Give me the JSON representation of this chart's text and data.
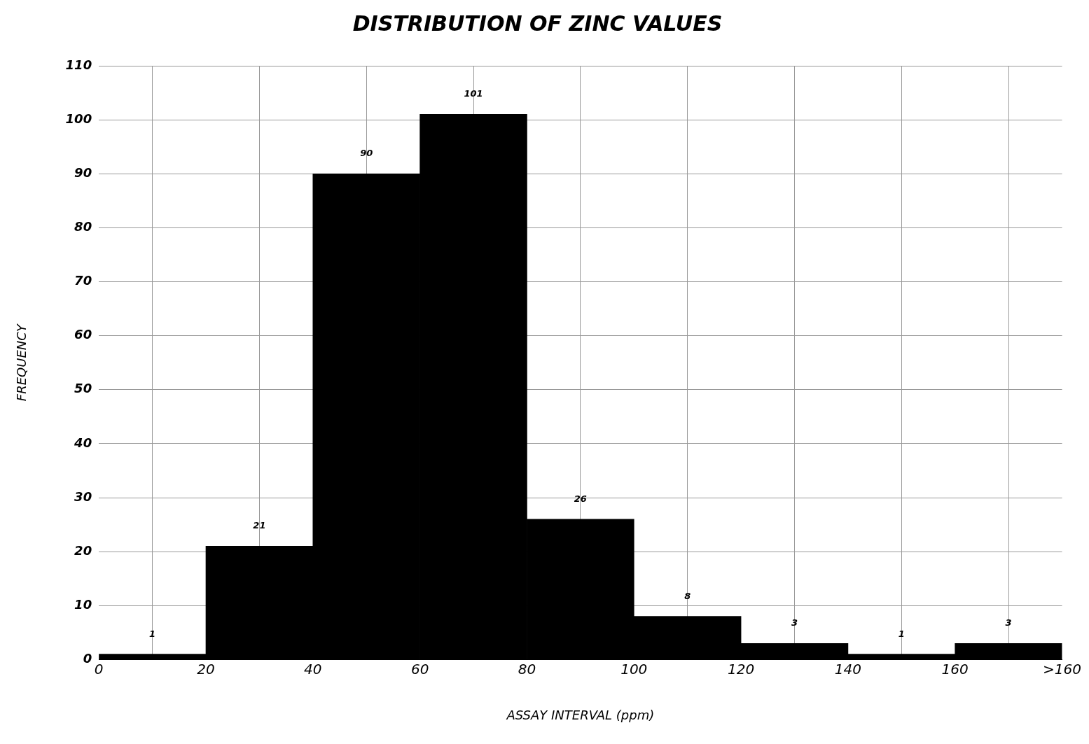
{
  "chart_data": {
    "type": "histogram",
    "title": "DISTRIBUTION OF ZINC VALUES",
    "xlabel": "ASSAY INTERVAL (ppm)",
    "ylabel": "FREQUENCY",
    "bins": [
      0,
      20,
      40,
      60,
      80,
      100,
      120,
      140,
      160,
      180
    ],
    "values": [
      1,
      21,
      90,
      101,
      26,
      8,
      3,
      1,
      3
    ],
    "color": "#000000",
    "xlim": [
      0,
      180
    ],
    "xticks": [
      0,
      20,
      40,
      60,
      80,
      100,
      120,
      140,
      160,
      {
        "value": 180,
        "label": ">160"
      }
    ],
    "ylim": [
      0,
      110
    ],
    "yticks": [
      0,
      10,
      20,
      30,
      40,
      50,
      60,
      70,
      80,
      90,
      100,
      110
    ],
    "grid": true,
    "data_labels": true
  }
}
